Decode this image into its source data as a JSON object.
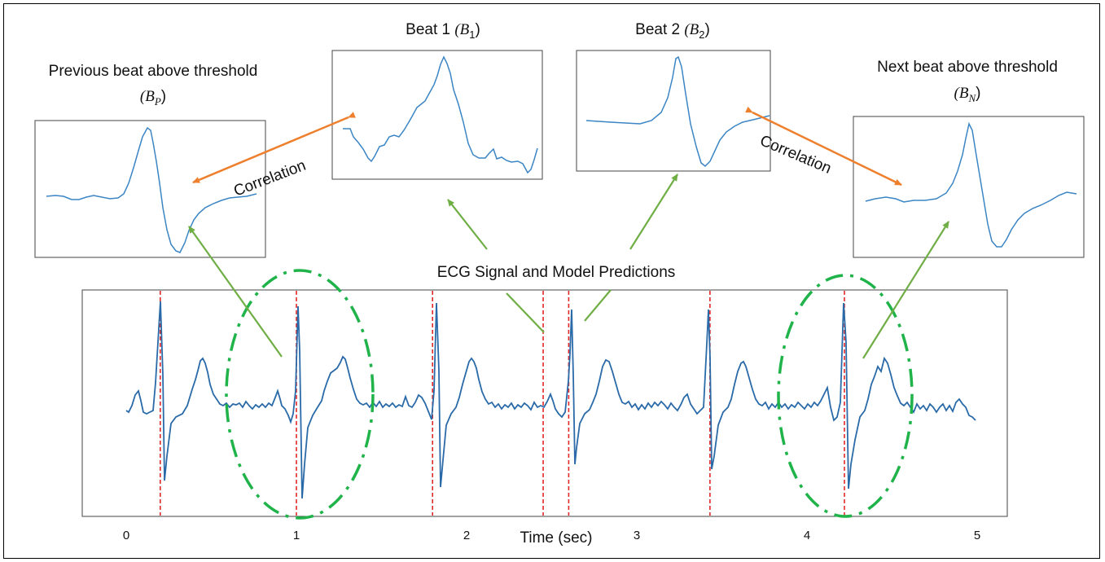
{
  "panels": {
    "prev": {
      "title_line1": "Previous beat above threshold",
      "symbol": "(B",
      "sub": "P",
      "close": ")"
    },
    "beat1": {
      "title": "Beat 1 ",
      "symbol": "(B",
      "sub": "1",
      "close": ")"
    },
    "beat2": {
      "title": "Beat 2 ",
      "symbol": "(B",
      "sub": "2",
      "close": ")"
    },
    "next": {
      "title_line1": "Next beat above threshold",
      "symbol": "(B",
      "sub": "N",
      "close": ")"
    }
  },
  "labels": {
    "correlation_left": "Correlation",
    "correlation_right": "Correlation",
    "signal_title": "ECG Signal and Model Predictions",
    "xlabel": "Time (sec)"
  },
  "chart_data": {
    "type": "line",
    "xlabel": "Time (sec)",
    "xlim": [
      0,
      5
    ],
    "x_ticks": [
      "0",
      "1",
      "2",
      "3",
      "4",
      "5"
    ],
    "predicted_beats": [
      0.2,
      1.0,
      1.8,
      2.45,
      2.6,
      3.43,
      4.22
    ],
    "highlighted_beats": [
      1.0,
      4.22
    ]
  },
  "colors": {
    "signal": "#2a6aa8",
    "beat_line": "#e02a2a",
    "correlation_arrow": "#ee7f2d",
    "pointer_arrow": "#6fae45",
    "ellipse": "#1fb34a"
  }
}
